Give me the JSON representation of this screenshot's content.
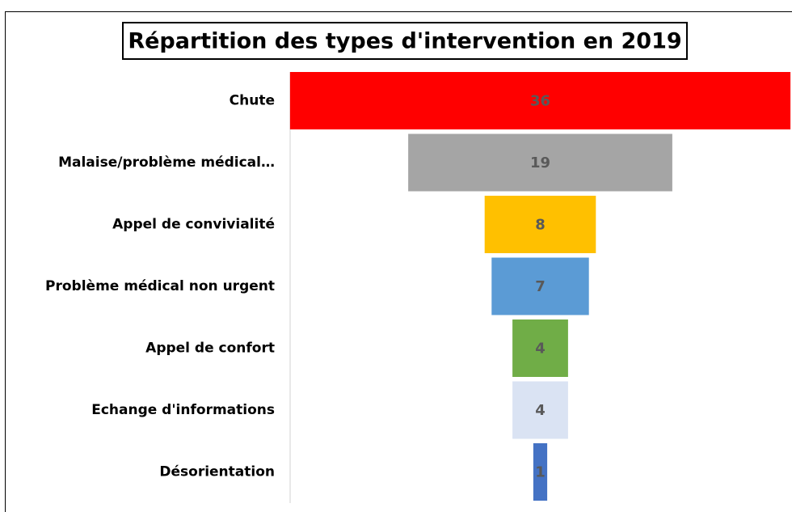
{
  "chart_data": {
    "type": "funnel",
    "title": "Répartition des types d'intervention en 2019",
    "categories": [
      "Chute",
      "Malaise/problème médical…",
      "Appel de convivialité",
      "Problème médical non urgent",
      "Appel de confort",
      "Echange d'informations",
      "Désorientation"
    ],
    "values": [
      36,
      19,
      8,
      7,
      4,
      4,
      1
    ],
    "colors": [
      "#ff0000",
      "#a5a5a5",
      "#ffc000",
      "#5b9bd5",
      "#70ad47",
      "#dae3f3",
      "#4472c4"
    ]
  }
}
